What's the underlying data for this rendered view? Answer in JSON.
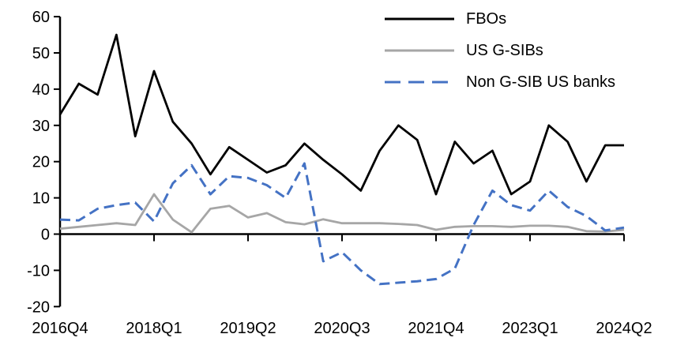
{
  "chart_data": {
    "type": "line",
    "title": "",
    "xlabel": "",
    "ylabel": "",
    "x_categories": [
      "2016Q4",
      "2017Q1",
      "2017Q2",
      "2017Q3",
      "2017Q4",
      "2018Q1",
      "2018Q2",
      "2018Q3",
      "2018Q4",
      "2019Q1",
      "2019Q2",
      "2019Q3",
      "2019Q4",
      "2020Q1",
      "2020Q2",
      "2020Q3",
      "2020Q4",
      "2021Q1",
      "2021Q2",
      "2021Q3",
      "2021Q4",
      "2022Q1",
      "2022Q2",
      "2022Q3",
      "2022Q4",
      "2023Q1",
      "2023Q2",
      "2023Q3",
      "2023Q4",
      "2024Q1",
      "2024Q2"
    ],
    "x_tick_labels": [
      "2016Q4",
      "2018Q1",
      "2019Q2",
      "2020Q3",
      "2021Q4",
      "2023Q1",
      "2024Q2"
    ],
    "x_tick_indices": [
      0,
      5,
      10,
      15,
      20,
      25,
      30
    ],
    "y_ticks": [
      60,
      50,
      40,
      30,
      20,
      10,
      0,
      -10,
      -20
    ],
    "ylim": [
      -20,
      60
    ],
    "grid": false,
    "legend_position": "top-right",
    "axis_color": "#000000",
    "series": [
      {
        "id": "fbos",
        "name": "FBOs",
        "color": "#000000",
        "style": "solid",
        "values": [
          33,
          41.5,
          38.5,
          55,
          27,
          45,
          31,
          25,
          16.5,
          24,
          20.5,
          17,
          19,
          25,
          20.5,
          16.5,
          12,
          23,
          30,
          26,
          11,
          25.5,
          19.5,
          23,
          11,
          14.5,
          30,
          25.5,
          14.5,
          24.5,
          24.5
        ]
      },
      {
        "id": "us-gsibs",
        "name": "US G-SIBs",
        "color": "#a6a6a6",
        "style": "solid",
        "values": [
          1.5,
          2,
          2.5,
          3,
          2.5,
          11,
          4,
          0.5,
          7,
          7.8,
          4.6,
          5.8,
          3.3,
          2.7,
          4.1,
          3,
          3,
          3,
          2.8,
          2.5,
          1.2,
          2,
          2.2,
          2.2,
          2,
          2.3,
          2.3,
          2,
          0.8,
          0.7,
          1.2
        ]
      },
      {
        "id": "non-gsib-us-banks",
        "name": "Non G-SIB US banks",
        "color": "#4472c4",
        "style": "dashed",
        "values": [
          4,
          3.8,
          7,
          8,
          8.7,
          3.5,
          14,
          19,
          11,
          16,
          15.5,
          13.5,
          10,
          19.5,
          -7.5,
          -5,
          -10,
          -13.8,
          -13.4,
          -13,
          -12.4,
          -9.5,
          2.5,
          12,
          8,
          6.5,
          12,
          7.5,
          5,
          1,
          1.8
        ]
      }
    ]
  }
}
